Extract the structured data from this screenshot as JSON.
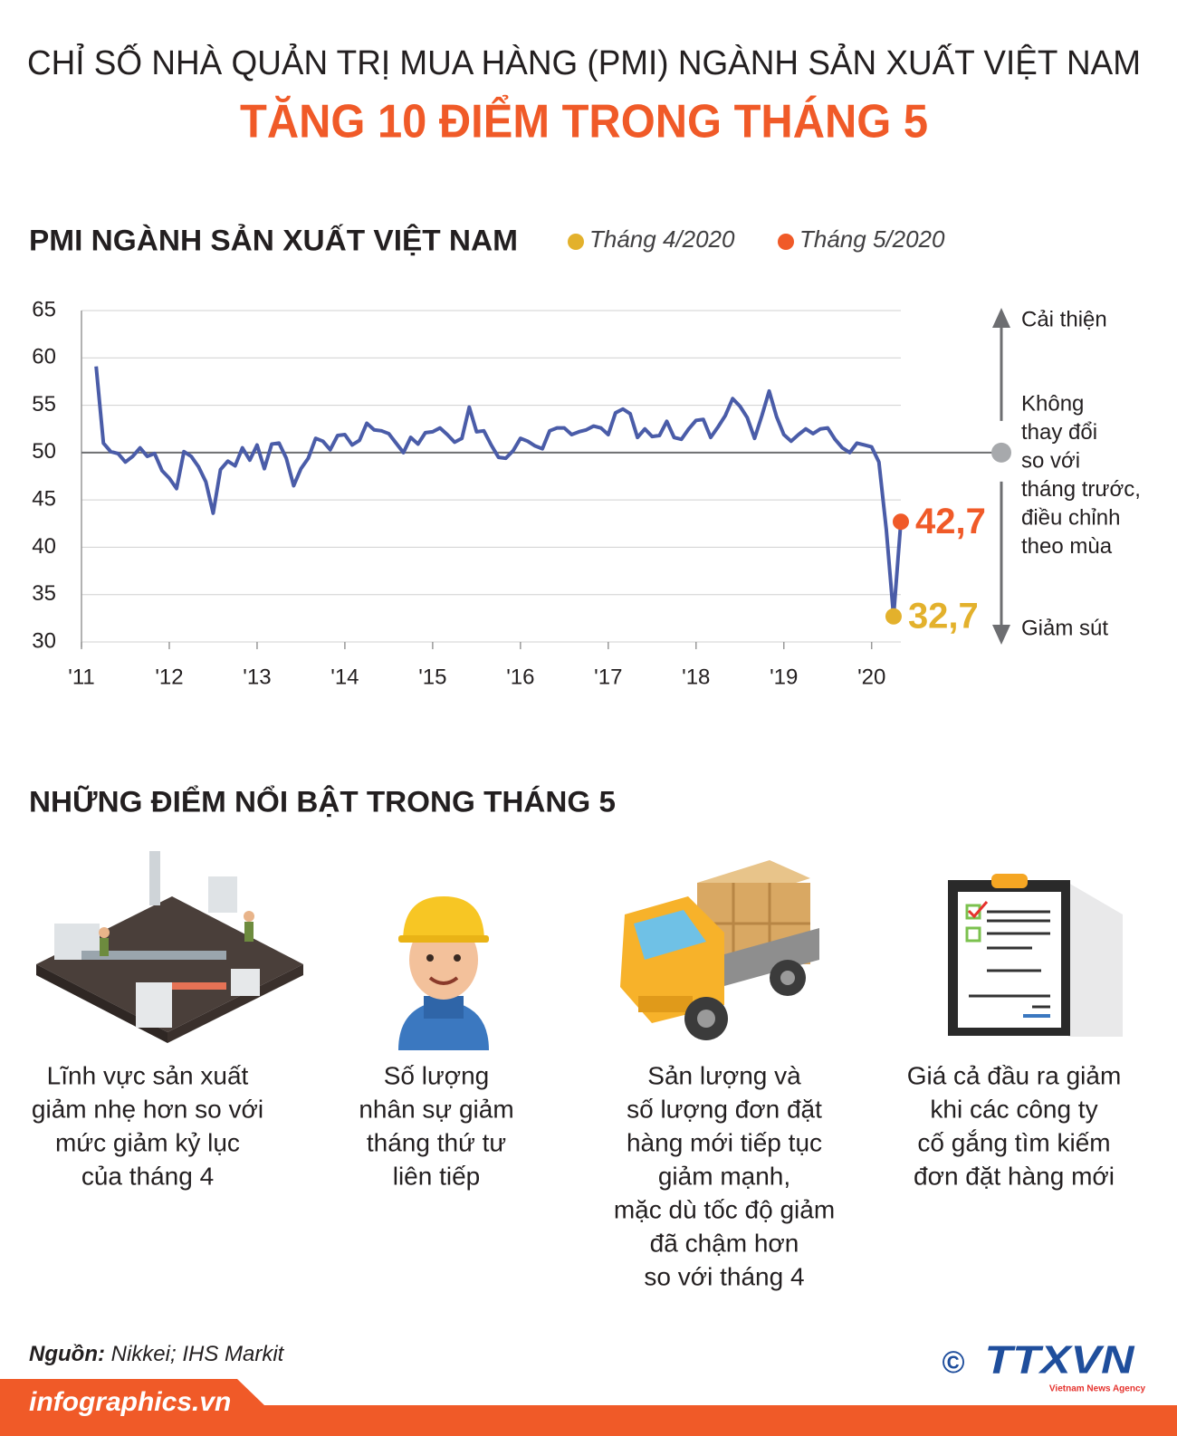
{
  "header": {
    "title": "CHỈ SỐ NHÀ QUẢN TRỊ MUA HÀNG (PMI) NGÀNH SẢN XUẤT VIỆT NAM",
    "subtitle": "TĂNG 10 ĐIỂM TRONG THÁNG 5"
  },
  "chart_data": {
    "type": "line",
    "title": "PMI NGÀNH SẢN XUẤT VIỆT NAM",
    "x": [
      2011.167,
      2011.25,
      2011.333,
      2011.417,
      2011.5,
      2011.583,
      2011.667,
      2011.75,
      2011.833,
      2011.917,
      2012,
      2012.083,
      2012.167,
      2012.25,
      2012.333,
      2012.417,
      2012.5,
      2012.583,
      2012.667,
      2012.75,
      2012.833,
      2012.917,
      2013,
      2013.083,
      2013.167,
      2013.25,
      2013.333,
      2013.417,
      2013.5,
      2013.583,
      2013.667,
      2013.75,
      2013.833,
      2013.917,
      2014,
      2014.083,
      2014.167,
      2014.25,
      2014.333,
      2014.417,
      2014.5,
      2014.583,
      2014.667,
      2014.75,
      2014.833,
      2014.917,
      2015,
      2015.083,
      2015.167,
      2015.25,
      2015.333,
      2015.417,
      2015.5,
      2015.583,
      2015.667,
      2015.75,
      2015.833,
      2015.917,
      2016,
      2016.083,
      2016.167,
      2016.25,
      2016.333,
      2016.417,
      2016.5,
      2016.583,
      2016.667,
      2016.75,
      2016.833,
      2016.917,
      2017,
      2017.083,
      2017.167,
      2017.25,
      2017.333,
      2017.417,
      2017.5,
      2017.583,
      2017.667,
      2017.75,
      2017.833,
      2017.917,
      2018,
      2018.083,
      2018.167,
      2018.25,
      2018.333,
      2018.417,
      2018.5,
      2018.583,
      2018.667,
      2018.75,
      2018.833,
      2018.917,
      2019,
      2019.083,
      2019.167,
      2019.25,
      2019.333,
      2019.417,
      2019.5,
      2019.583,
      2019.667,
      2019.75,
      2019.833,
      2019.917,
      2020,
      2020.083,
      2020.167,
      2020.25,
      2020.333
    ],
    "series": [
      {
        "color": "#4a5ca8",
        "values": [
          59.1,
          51.0,
          50.1,
          49.9,
          49.0,
          49.6,
          50.5,
          49.6,
          49.9,
          48.1,
          47.3,
          46.2,
          50.1,
          49.6,
          48.5,
          46.9,
          43.6,
          48.2,
          49.1,
          48.6,
          50.5,
          49.2,
          50.8,
          48.3,
          50.9,
          51.0,
          49.4,
          46.5,
          48.3,
          49.4,
          51.5,
          51.2,
          50.3,
          51.8,
          51.9,
          50.8,
          51.3,
          53.1,
          52.4,
          52.3,
          52.0,
          51.0,
          50.0,
          51.6,
          50.9,
          52.1,
          52.2,
          52.6,
          51.9,
          51.1,
          51.5,
          54.8,
          52.2,
          52.3,
          50.8,
          49.5,
          49.4,
          50.2,
          51.5,
          51.2,
          50.7,
          50.4,
          52.3,
          52.6,
          52.6,
          51.9,
          52.2,
          52.4,
          52.8,
          52.6,
          51.9,
          54.2,
          54.6,
          54.1,
          51.6,
          52.5,
          51.7,
          51.8,
          53.3,
          51.6,
          51.4,
          52.5,
          53.4,
          53.5,
          51.6,
          52.7,
          53.9,
          55.7,
          54.9,
          53.7,
          51.5,
          53.9,
          56.5,
          53.8,
          51.9,
          51.2,
          51.9,
          52.5,
          52.0,
          52.5,
          52.6,
          51.4,
          50.5,
          50.0,
          51.0,
          50.8,
          50.6,
          49.0,
          41.9,
          32.7,
          42.7
        ]
      }
    ],
    "markers": [
      {
        "name": "Tháng 4/2020",
        "color": "#e3b12c",
        "x": 2020.25,
        "value": 32.7,
        "value_label": "32,7"
      },
      {
        "name": "Tháng 5/2020",
        "color": "#f05a28",
        "x": 2020.333,
        "value": 42.7,
        "value_label": "42,7"
      }
    ],
    "xlim": [
      2011,
      2020.333
    ],
    "xticks": [
      {
        "value": 2011,
        "label": "'11"
      },
      {
        "value": 2012,
        "label": "'12"
      },
      {
        "value": 2013,
        "label": "'13"
      },
      {
        "value": 2014,
        "label": "'14"
      },
      {
        "value": 2015,
        "label": "'15"
      },
      {
        "value": 2016,
        "label": "'16"
      },
      {
        "value": 2017,
        "label": "'17"
      },
      {
        "value": 2018,
        "label": "'18"
      },
      {
        "value": 2019,
        "label": "'19"
      },
      {
        "value": 2020,
        "label": "'20"
      }
    ],
    "ylim": [
      30,
      65
    ],
    "yticks": [
      30,
      35,
      40,
      45,
      50,
      55,
      60,
      65
    ],
    "grid": true,
    "reference_line": 50,
    "scale_labels": {
      "up": "Cải thiện",
      "middle": [
        "Không",
        "thay đổi",
        "so với",
        "tháng trước,",
        "điều chỉnh",
        "theo mùa"
      ],
      "down": "Giảm sút"
    }
  },
  "highlights": {
    "title": "NHỮNG ĐIỂM NỔI BẬT TRONG THÁNG 5",
    "items": [
      [
        "Lĩnh vực sản xuất",
        "giảm nhẹ hơn so với",
        "mức giảm kỷ lục",
        "của tháng 4"
      ],
      [
        "Số lượng",
        "nhân sự giảm",
        "tháng thứ tư",
        "liên tiếp"
      ],
      [
        "Sản lượng và",
        "số lượng đơn đặt",
        "hàng mới tiếp tục",
        "giảm mạnh,",
        "mặc dù tốc độ giảm",
        "đã chậm hơn",
        "so với tháng 4"
      ],
      [
        "Giá cả đầu ra giảm",
        "khi các công ty",
        "cố gắng tìm kiếm",
        "đơn đặt hàng mới"
      ]
    ]
  },
  "footer": {
    "source_label": "Nguồn:",
    "source": "Nikkei; IHS Markit",
    "site": "infographics.vn",
    "copyright": "©",
    "agency": "TTXVN",
    "agency_sub": "Vietnam News Agency"
  }
}
